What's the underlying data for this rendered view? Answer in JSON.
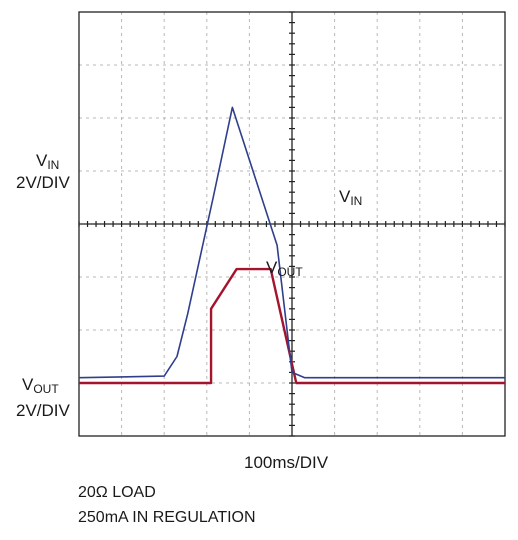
{
  "chart_data": {
    "type": "line",
    "divisions": {
      "x": 10,
      "y": 8
    },
    "series": [
      {
        "name": "VIN",
        "color": "#2f3f8c",
        "points": [
          [
            0,
            1.1
          ],
          [
            4.0,
            1.13
          ],
          [
            4.6,
            1.5
          ],
          [
            5.1,
            2.3
          ],
          [
            6.3,
            4.5
          ],
          [
            7.2,
            6.2
          ],
          [
            9.3,
            3.6
          ],
          [
            10.0,
            1.2
          ],
          [
            10.6,
            1.1
          ],
          [
            20.0,
            1.1
          ]
        ]
      },
      {
        "name": "VOUT",
        "color": "#a3152f",
        "points": [
          [
            0,
            1.0
          ],
          [
            6.2,
            1.0
          ],
          [
            6.2,
            2.4
          ],
          [
            7.4,
            3.15
          ],
          [
            9.0,
            3.15
          ],
          [
            10.2,
            1.0
          ],
          [
            20.0,
            1.0
          ]
        ]
      }
    ],
    "labels": {
      "vin_axis_main": "V",
      "vin_axis_sub": "IN",
      "vin_scale": "2V/DIV",
      "vout_axis_main": "V",
      "vout_axis_sub": "OUT",
      "vout_scale": "2V/DIV",
      "vin_trace_main": "V",
      "vin_trace_sub": "IN",
      "vout_trace_main": "V",
      "vout_trace_sub": "OUT",
      "time_scale": "100ms/DIV"
    },
    "notes": [
      "20Ω LOAD",
      "250mA IN REGULATION"
    ],
    "grid": true
  }
}
